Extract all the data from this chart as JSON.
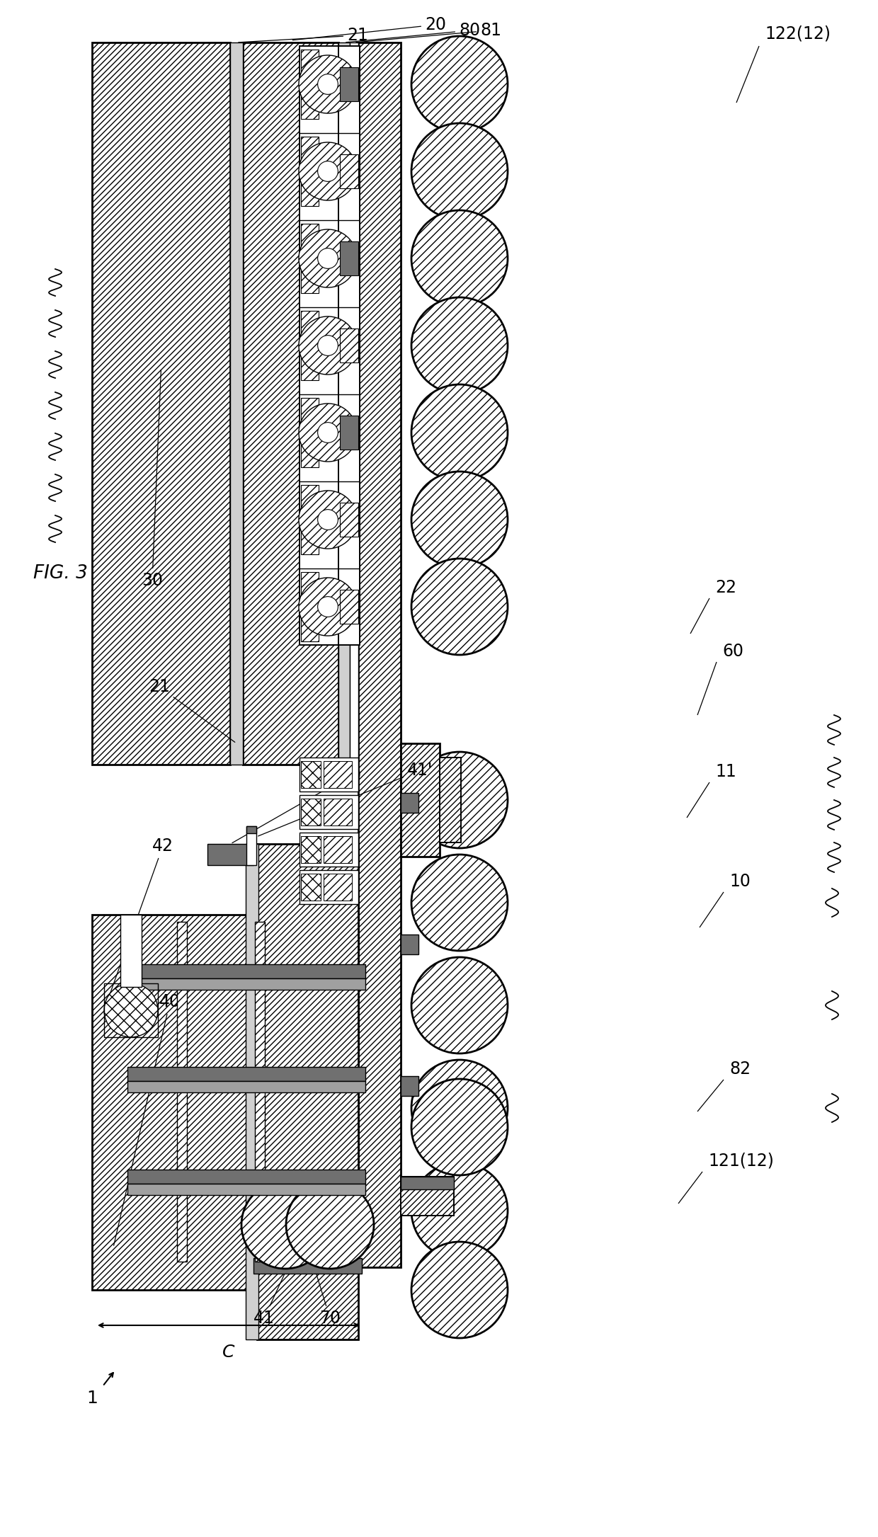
{
  "bg_color": "#ffffff",
  "gray_dark": "#707070",
  "gray_mid": "#a0a0a0",
  "gray_light": "#d0d0d0",
  "lw_thick": 2.0,
  "lw_med": 1.4,
  "lw_thin": 1.0
}
